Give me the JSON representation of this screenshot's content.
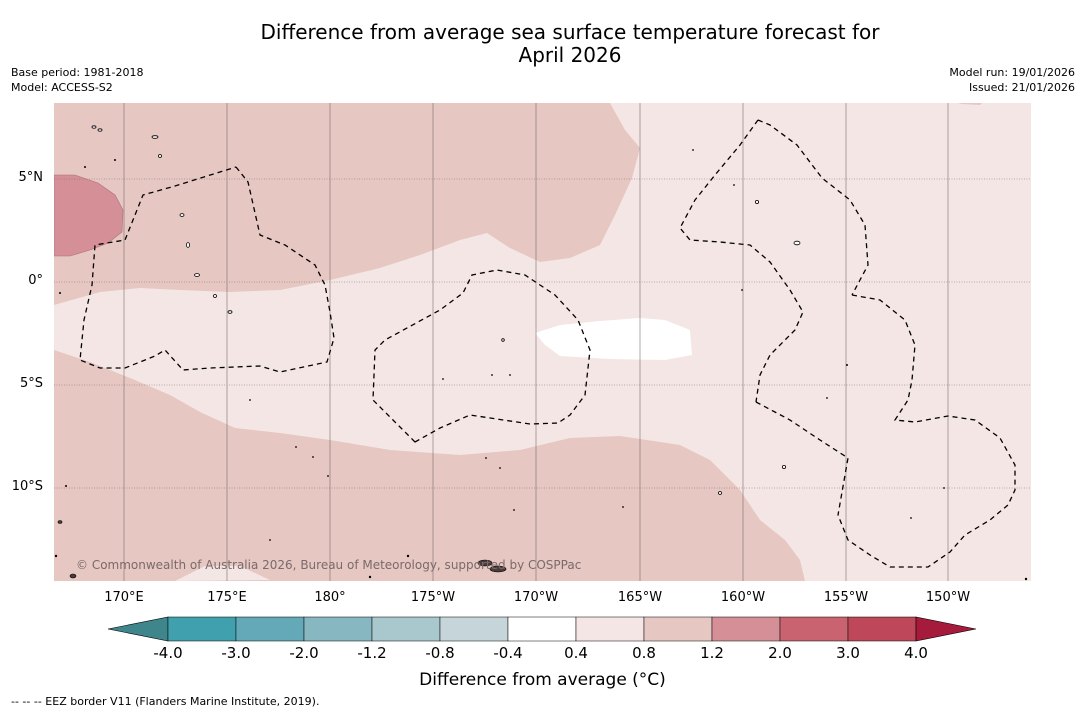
{
  "title": {
    "line1": "Difference from average sea surface temperature forecast for",
    "line2": "April 2026"
  },
  "meta": {
    "base_period": "Base period: 1981-2018",
    "model": "Model: ACCESS-S2",
    "model_run": "Model run: 19/01/2026",
    "issued": "Issued: 21/01/2026"
  },
  "map": {
    "lat_labels": [
      "5°N",
      "0°",
      "5°S",
      "10°S"
    ],
    "lon_labels": [
      "170°E",
      "175°E",
      "180°",
      "175°W",
      "170°W",
      "165°W",
      "160°W",
      "155°W",
      "150°W"
    ],
    "copyright": "© Commonwealth of Australia 2026, Bureau of Meteorology, supported by COSPPac",
    "anomaly_classes": {
      "background": "0.4 to 0.8",
      "equatorial_band": "0.8 to 1.2",
      "western_warm_patch": "1.2 to 2.0",
      "central_cool_patch": "-0.4 to 0.4"
    }
  },
  "colorbar": {
    "ticks": [
      "-4.0",
      "-3.0",
      "-2.0",
      "-1.2",
      "-0.8",
      "-0.4",
      "0.4",
      "0.8",
      "1.2",
      "2.0",
      "3.0",
      "4.0"
    ],
    "colors": [
      "#41a0ad",
      "#63a9b7",
      "#87b7c1",
      "#a8c8cd",
      "#c6d5d9",
      "#ffffff",
      "#f4e6e4",
      "#e6c7c2",
      "#d48f97",
      "#c9636f",
      "#be4859"
    ],
    "under_color": "#3e858c",
    "over_color": "#a61b3c",
    "title": "Difference from average (°C)"
  },
  "footnote": "--  --  -- EEZ border V11 (Flanders Marine Institute, 2019)."
}
